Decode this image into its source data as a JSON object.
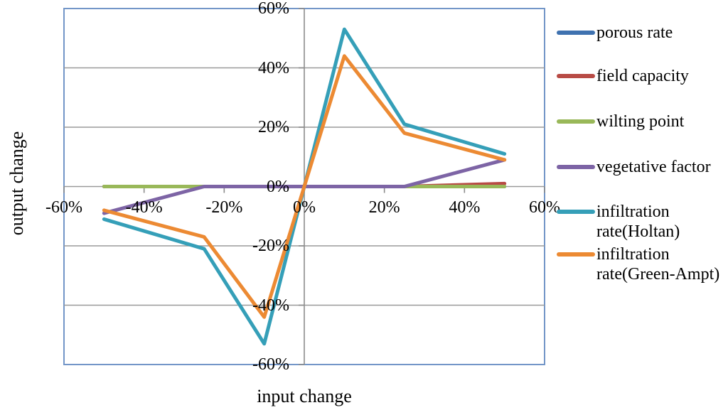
{
  "figure": {
    "background_color": "#FFFFFF",
    "plot_border_color": "#7396C8",
    "gridline_color": "#9A9A9A",
    "axis_line_color": "#8C8C8C",
    "text_color": "#000000"
  },
  "chart_data": {
    "type": "line",
    "title": "",
    "xlabel": "input change",
    "ylabel": "output change",
    "xlim": [
      -60,
      60
    ],
    "ylim": [
      -60,
      60
    ],
    "x_tick_values": [
      -60,
      -40,
      -20,
      0,
      20,
      40,
      60
    ],
    "x_tick_labels": [
      "-60%",
      "-40%",
      "-20%",
      "0%",
      "20%",
      "40%",
      "60%"
    ],
    "y_tick_values": [
      60,
      40,
      20,
      0,
      -20,
      -40,
      -60
    ],
    "y_tick_labels": [
      "60%",
      "40%",
      "20%",
      "0%",
      "-20%",
      "-40%",
      "-60%"
    ],
    "grid": "horizontal gridlines every 20%",
    "legend_position": "right",
    "units": "percent",
    "x": [
      -50,
      -25,
      -10,
      0,
      10,
      25,
      50
    ],
    "series": [
      {
        "name": "porous rate",
        "color": "#3F72B0",
        "values": [
          0,
          0,
          0,
          0,
          0,
          0,
          0
        ]
      },
      {
        "name": "field capacity",
        "color": "#B84B45",
        "values": [
          0,
          0,
          0,
          0,
          0,
          0,
          1
        ]
      },
      {
        "name": "wilting point",
        "color": "#99B859",
        "values": [
          0,
          0,
          0,
          0,
          0,
          0,
          0
        ]
      },
      {
        "name": "vegetative factor",
        "color": "#7D64A5",
        "values": [
          -9,
          0,
          0,
          0,
          0,
          0,
          9
        ]
      },
      {
        "name": "infiltration rate(Holtan)",
        "color": "#359FB8",
        "values": [
          -11,
          -21,
          -53,
          0,
          53,
          21,
          11
        ]
      },
      {
        "name": "infiltration rate(Green-Ampt)",
        "color": "#EC8A33",
        "values": [
          -8,
          -17,
          -44,
          0,
          44,
          18,
          9
        ]
      }
    ]
  }
}
